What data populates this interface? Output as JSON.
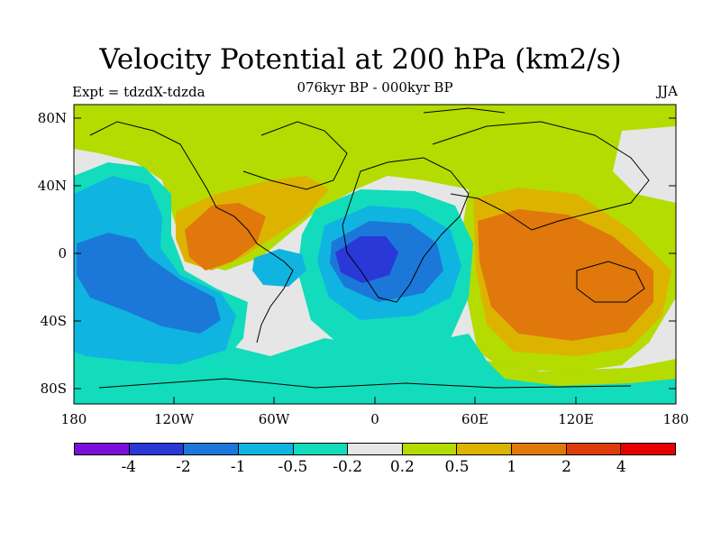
{
  "title": "Velocity Potential at 200 hPa (km2/s)",
  "subtitle": "076kyr BP - 000kyr BP",
  "left_label": "Expt = tdzdX-tdzda",
  "right_label": "JJA",
  "y_ticks": [
    "80N",
    "40N",
    "0",
    "40S",
    "80S"
  ],
  "x_ticks": [
    "180",
    "120W",
    "60W",
    "0",
    "60E",
    "120E",
    "180"
  ],
  "colorbar": {
    "colors": [
      "#7a10d8",
      "#2a38d8",
      "#1b78d8",
      "#10b4e0",
      "#12dcbc",
      "#e6e6e6",
      "#b4dc00",
      "#dcb400",
      "#e0780c",
      "#dc3c0a",
      "#e60000"
    ],
    "labels": [
      "-4",
      "-2",
      "-1",
      "-0.5",
      "-0.2",
      "0.2",
      "0.5",
      "1",
      "2",
      "4"
    ]
  },
  "colors": {
    "neutral": "#e6e6e6",
    "pos_weak": "#b4dc00",
    "pos_mid": "#dcb400",
    "pos_strong": "#e0780c",
    "neg_weak": "#12dcbc",
    "neg_mid": "#10b4e0",
    "neg_strong": "#1b78d8",
    "neg_max": "#2a38d8"
  }
}
